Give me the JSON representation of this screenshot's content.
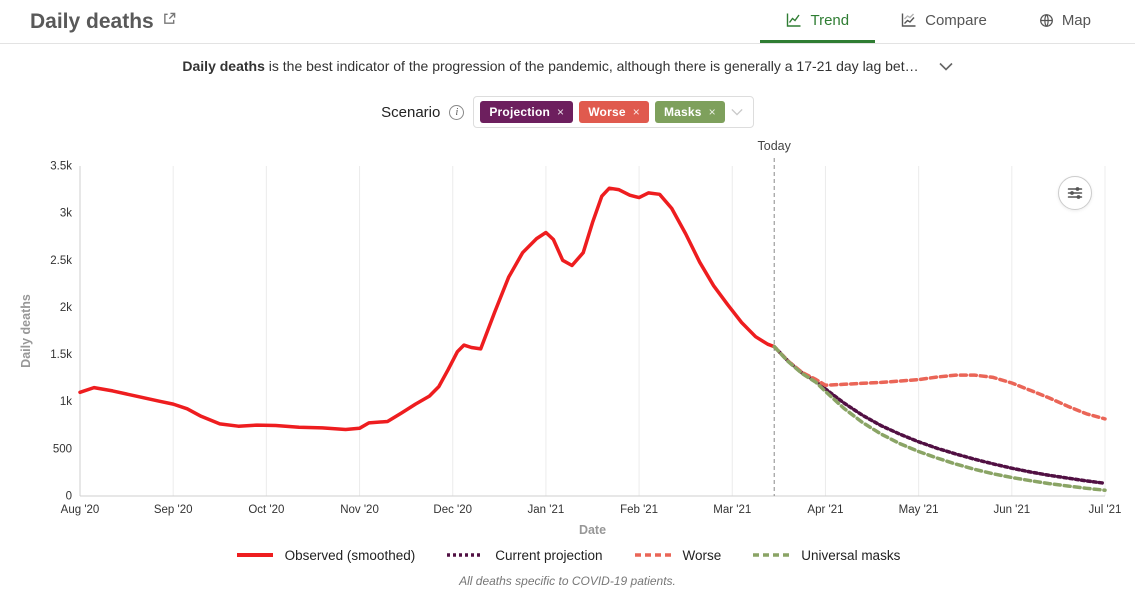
{
  "icons": {
    "close": "×",
    "info": "i"
  },
  "header": {
    "title": "Daily deaths",
    "accent": "#2f7d33",
    "tabs": [
      {
        "label": "Trend",
        "icon": "trend-chart-icon",
        "active": true
      },
      {
        "label": "Compare",
        "icon": "compare-chart-icon",
        "active": false
      },
      {
        "label": "Map",
        "icon": "globe-icon",
        "active": false
      }
    ]
  },
  "description": {
    "lead": "Daily deaths",
    "rest": " is the best indicator of the progression of the pandemic, although there is generally a 17-21 day lag bet…"
  },
  "scenario": {
    "label": "Scenario",
    "tags": [
      {
        "label": "Projection",
        "color": "#6d1f5e"
      },
      {
        "label": "Worse",
        "color": "#e05a4e"
      },
      {
        "label": "Masks",
        "color": "#7ea05c"
      }
    ]
  },
  "chart_data": {
    "type": "line",
    "title": "",
    "xlabel": "Date",
    "ylabel": "Daily deaths",
    "xlim": [
      0,
      11
    ],
    "ylim": [
      0,
      3500
    ],
    "grid": "vertical",
    "x_ticks": [
      {
        "x": 0,
        "label": "Aug '20"
      },
      {
        "x": 1,
        "label": "Sep '20"
      },
      {
        "x": 2,
        "label": "Oct '20"
      },
      {
        "x": 3,
        "label": "Nov '20"
      },
      {
        "x": 4,
        "label": "Dec '20"
      },
      {
        "x": 5,
        "label": "Jan '21"
      },
      {
        "x": 6,
        "label": "Feb '21"
      },
      {
        "x": 7,
        "label": "Mar '21"
      },
      {
        "x": 8,
        "label": "Apr '21"
      },
      {
        "x": 9,
        "label": "May '21"
      },
      {
        "x": 10,
        "label": "Jun '21"
      },
      {
        "x": 11,
        "label": "Jul '21"
      }
    ],
    "y_ticks": [
      {
        "value": 0,
        "label": "0"
      },
      {
        "value": 500,
        "label": "500"
      },
      {
        "value": 1000,
        "label": "1k"
      },
      {
        "value": 1500,
        "label": "1.5k"
      },
      {
        "value": 2000,
        "label": "2k"
      },
      {
        "value": 2500,
        "label": "2.5k"
      },
      {
        "value": 3000,
        "label": "3k"
      },
      {
        "value": 3500,
        "label": "3.5k"
      }
    ],
    "today": {
      "x": 7.45,
      "label": "Today"
    },
    "series": [
      {
        "name": "Observed (smoothed)",
        "color": "#ee1d1f",
        "dash": "",
        "width": 3.5,
        "points": [
          [
            0,
            1100
          ],
          [
            0.15,
            1150
          ],
          [
            0.35,
            1115
          ],
          [
            0.6,
            1060
          ],
          [
            0.85,
            1005
          ],
          [
            1.0,
            975
          ],
          [
            1.15,
            925
          ],
          [
            1.3,
            845
          ],
          [
            1.5,
            765
          ],
          [
            1.7,
            740
          ],
          [
            1.9,
            752
          ],
          [
            2.1,
            748
          ],
          [
            2.35,
            730
          ],
          [
            2.6,
            722
          ],
          [
            2.85,
            705
          ],
          [
            3.0,
            718
          ],
          [
            3.1,
            775
          ],
          [
            3.3,
            790
          ],
          [
            3.45,
            880
          ],
          [
            3.6,
            975
          ],
          [
            3.75,
            1060
          ],
          [
            3.85,
            1160
          ],
          [
            3.95,
            1340
          ],
          [
            4.05,
            1530
          ],
          [
            4.12,
            1600
          ],
          [
            4.2,
            1575
          ],
          [
            4.3,
            1560
          ],
          [
            4.45,
            1950
          ],
          [
            4.6,
            2320
          ],
          [
            4.75,
            2580
          ],
          [
            4.9,
            2730
          ],
          [
            5.0,
            2795
          ],
          [
            5.08,
            2720
          ],
          [
            5.18,
            2500
          ],
          [
            5.28,
            2445
          ],
          [
            5.4,
            2580
          ],
          [
            5.5,
            2900
          ],
          [
            5.6,
            3180
          ],
          [
            5.68,
            3265
          ],
          [
            5.78,
            3250
          ],
          [
            5.9,
            3190
          ],
          [
            6.0,
            3165
          ],
          [
            6.1,
            3215
          ],
          [
            6.22,
            3200
          ],
          [
            6.35,
            3050
          ],
          [
            6.5,
            2780
          ],
          [
            6.65,
            2480
          ],
          [
            6.8,
            2230
          ],
          [
            6.95,
            2030
          ],
          [
            7.1,
            1840
          ],
          [
            7.25,
            1690
          ],
          [
            7.38,
            1610
          ],
          [
            7.45,
            1585
          ]
        ]
      },
      {
        "name": "Current projection",
        "color": "#511043",
        "dash": "3 3",
        "width": 3.5,
        "points": [
          [
            7.45,
            1585
          ],
          [
            7.6,
            1430
          ],
          [
            7.75,
            1305
          ],
          [
            7.9,
            1215
          ],
          [
            8.0,
            1135
          ],
          [
            8.2,
            985
          ],
          [
            8.4,
            855
          ],
          [
            8.6,
            745
          ],
          [
            8.8,
            655
          ],
          [
            9.0,
            575
          ],
          [
            9.2,
            505
          ],
          [
            9.4,
            445
          ],
          [
            9.6,
            390
          ],
          [
            9.8,
            340
          ],
          [
            10.0,
            295
          ],
          [
            10.2,
            255
          ],
          [
            10.4,
            220
          ],
          [
            10.6,
            190
          ],
          [
            10.8,
            160
          ],
          [
            11.0,
            135
          ]
        ]
      },
      {
        "name": "Worse",
        "color": "#ea6557",
        "dash": "6 4",
        "width": 3.5,
        "points": [
          [
            7.45,
            1585
          ],
          [
            7.6,
            1430
          ],
          [
            7.75,
            1310
          ],
          [
            7.9,
            1235
          ],
          [
            8.0,
            1175
          ],
          [
            8.2,
            1185
          ],
          [
            8.4,
            1195
          ],
          [
            8.6,
            1205
          ],
          [
            8.8,
            1220
          ],
          [
            9.0,
            1235
          ],
          [
            9.2,
            1262
          ],
          [
            9.4,
            1282
          ],
          [
            9.6,
            1282
          ],
          [
            9.8,
            1258
          ],
          [
            10.0,
            1198
          ],
          [
            10.2,
            1120
          ],
          [
            10.4,
            1040
          ],
          [
            10.6,
            952
          ],
          [
            10.8,
            872
          ],
          [
            11.0,
            818
          ]
        ]
      },
      {
        "name": "Universal masks",
        "color": "#8aa465",
        "dash": "6 4",
        "width": 3.5,
        "points": [
          [
            7.45,
            1585
          ],
          [
            7.6,
            1425
          ],
          [
            7.75,
            1298
          ],
          [
            7.9,
            1205
          ],
          [
            8.0,
            1108
          ],
          [
            8.2,
            928
          ],
          [
            8.4,
            778
          ],
          [
            8.6,
            655
          ],
          [
            8.8,
            555
          ],
          [
            9.0,
            472
          ],
          [
            9.2,
            402
          ],
          [
            9.4,
            338
          ],
          [
            9.6,
            283
          ],
          [
            9.8,
            235
          ],
          [
            10.0,
            196
          ],
          [
            10.2,
            162
          ],
          [
            10.4,
            132
          ],
          [
            10.6,
            106
          ],
          [
            10.8,
            82
          ],
          [
            11.0,
            62
          ]
        ]
      }
    ]
  },
  "legend": [
    {
      "label": "Observed (smoothed)",
      "color": "#ee1d1f",
      "dash": "",
      "width": 4
    },
    {
      "label": "Current projection",
      "color": "#511043",
      "dash": "3 3",
      "width": 3.5
    },
    {
      "label": "Worse",
      "color": "#ea6557",
      "dash": "6 4",
      "width": 3.5
    },
    {
      "label": "Universal masks",
      "color": "#8aa465",
      "dash": "6 4",
      "width": 3.5
    }
  ],
  "footer": "All deaths specific to COVID-19 patients."
}
